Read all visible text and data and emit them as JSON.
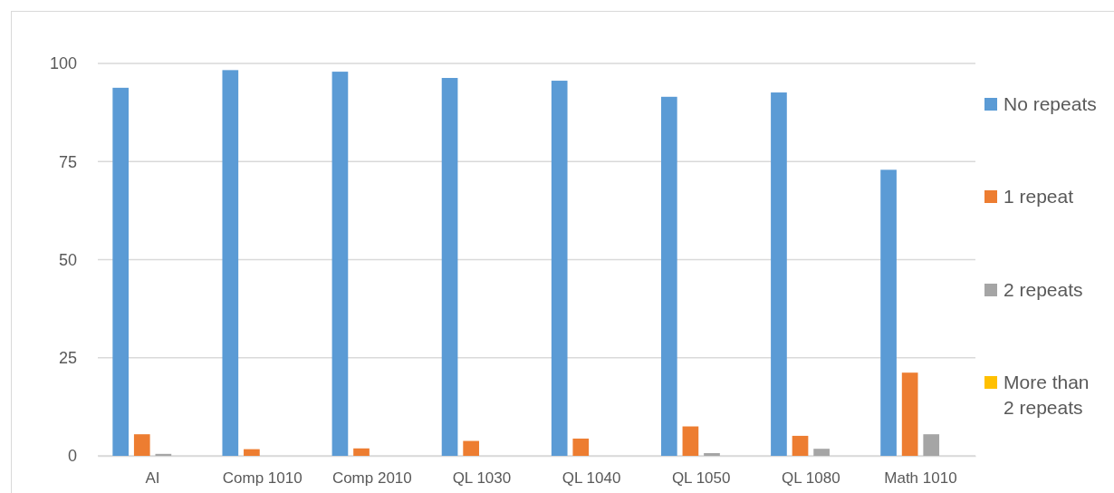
{
  "chart_data": {
    "type": "bar",
    "categories": [
      "AI",
      "Comp 1010",
      "Comp 2010",
      "QL 1030",
      "QL 1040",
      "QL 1050",
      "QL 1080",
      "Math 1010"
    ],
    "series": [
      {
        "name": "No repeats",
        "color": "#5b9bd5",
        "values": [
          93.8,
          98.3,
          97.9,
          96.3,
          95.6,
          91.5,
          92.6,
          72.9
        ]
      },
      {
        "name": "1 repeat",
        "color": "#ed7d31",
        "values": [
          5.5,
          1.7,
          1.9,
          3.8,
          4.4,
          7.5,
          5.1,
          21.2
        ]
      },
      {
        "name": "2 repeats",
        "color": "#a5a5a5",
        "values": [
          0.5,
          0,
          0,
          0,
          0,
          0.7,
          1.8,
          5.5
        ]
      },
      {
        "name": "More than 2 repeats",
        "color": "#ffc000",
        "values": [
          0,
          0,
          0,
          0,
          0,
          0,
          0,
          0
        ]
      }
    ],
    "ylim": [
      0,
      100
    ],
    "yticks": [
      0,
      25,
      50,
      75,
      100
    ],
    "grid": "y",
    "legend": "right"
  }
}
